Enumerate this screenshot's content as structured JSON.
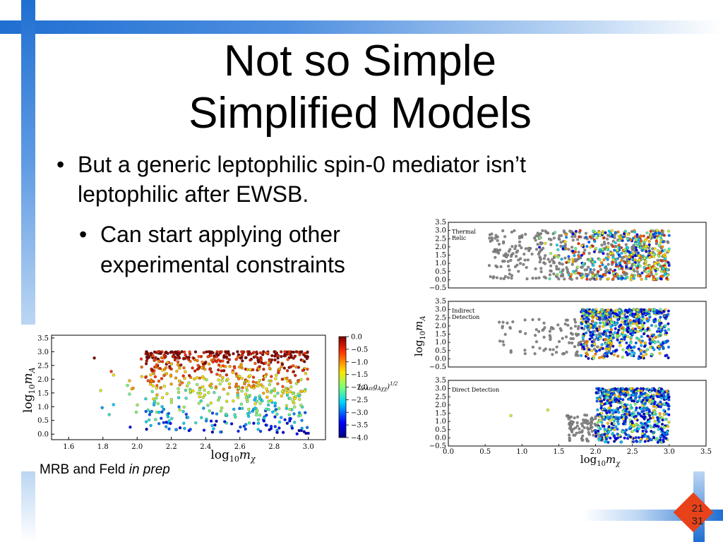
{
  "slide": {
    "title_line1": "Not so Simple",
    "title_line2": "Simplified Models",
    "bullet_main_1": "But a generic leptophilic spin-0 mediator isn’t",
    "bullet_main_2": "leptophilic after EWSB.",
    "bullet_sub_1": "Can start applying other",
    "bullet_sub_2": "experimental constraints",
    "bullet_glyph": "•",
    "credit_prefix": "MRB and Feld ",
    "credit_italic": "in prep",
    "page_current": "21",
    "page_total": "31",
    "accent_colors": {
      "blue": "#1f6fd1",
      "light_blue": "#9cc3ee",
      "red": "#e8421a"
    }
  },
  "chart_data": [
    {
      "type": "scatter",
      "xlabel": "log10 mχ",
      "ylabel": "log10 mA",
      "x_ticks": [
        "1.6",
        "1.8",
        "2.0",
        "2.2",
        "2.4",
        "2.6",
        "2.8",
        "3.0"
      ],
      "y_ticks": [
        "0.0",
        "0.5",
        "1.0",
        "1.5",
        "2.0",
        "2.5",
        "3.0",
        "3.5"
      ],
      "xlim": [
        1.5,
        3.1
      ],
      "ylim": [
        -0.2,
        3.6
      ],
      "colorbar": {
        "label": "(gAℓℓ gAχχ)1/2",
        "ticks": [
          "0.0",
          "−0.5",
          "−1.0",
          "−1.5",
          "−2.0",
          "−2.5",
          "−3.0",
          "−3.5",
          "−4.0"
        ],
        "range": [
          -4.0,
          0.0
        ]
      },
      "point_density": {
        "x_start": 1.75,
        "dense_from": 2.05,
        "x_end": 3.0
      }
    },
    {
      "type": "scatter",
      "panels": [
        {
          "label": "Thermal Relic"
        },
        {
          "label": "Indirect Detection"
        },
        {
          "label": "Direct Detection"
        }
      ],
      "xlabel": "log10 mχ",
      "ylabel": "log10 mA",
      "x_ticks": [
        "0.0",
        "0.5",
        "1.0",
        "1.5",
        "2.0",
        "2.5",
        "3.0",
        "3.5"
      ],
      "y_ticks": [
        "−0.5",
        "0.0",
        "0.5",
        "1.0",
        "1.5",
        "2.0",
        "2.5",
        "3.0",
        "3.5"
      ],
      "xlim": [
        0.0,
        3.5
      ],
      "ylim": [
        -0.5,
        3.5
      ]
    }
  ]
}
